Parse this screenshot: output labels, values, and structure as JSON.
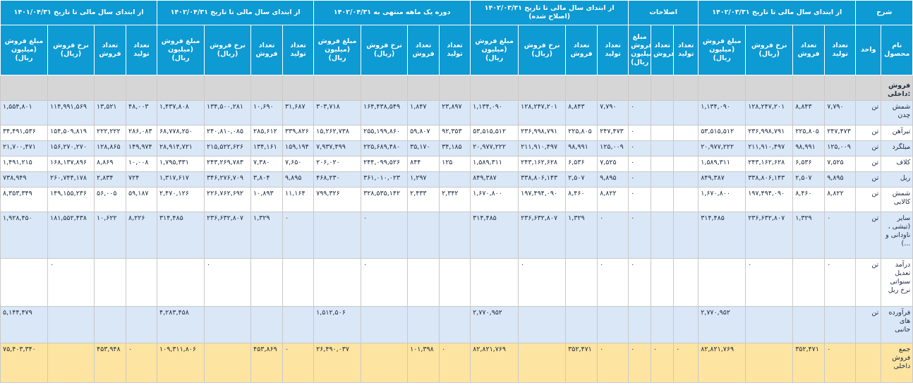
{
  "header_groups": [
    {
      "label": "شرح",
      "span": 2
    },
    {
      "label": "از ابتدای سال مالی تا تاریخ ۱۴۰۲/۰۳/۳۱",
      "span": 4
    },
    {
      "label": "اصلاحات",
      "span": 3
    },
    {
      "label": "از ابتدای سال مالی تا تاریخ ۱۴۰۲/۰۳/۳۱ (اصلاح شده)",
      "span": 4
    },
    {
      "label": "دوره یک ماهه منتهی به ۱۴۰۲/۰۴/۳۱",
      "span": 4
    },
    {
      "label": "از ابتدای سال مالی تا تاریخ ۱۴۰۲/۰۴/۳۱",
      "span": 4
    },
    {
      "label": "از ابتدای سال مالی تا تاریخ ۱۴۰۱/۰۴/۳۱",
      "span": 4
    }
  ],
  "sub_headers": [
    "نام محصول",
    "واحد",
    "تعداد تولید",
    "تعداد فروش",
    "نرخ فروش (ریال)",
    "مبلغ فروش (میلیون ریال)",
    "تعداد تولید",
    "تعداد فروش",
    "مبلغ فروش (میلیون ریال)",
    "تعداد تولید",
    "تعداد فروش",
    "نرخ فروش (ریال)",
    "مبلغ فروش (میلیون ریال)",
    "تعداد تولید",
    "تعداد فروش",
    "نرخ فروش (ریال)",
    "مبلغ فروش (میلیون ریال)",
    "تعداد تولید",
    "تعداد فروش",
    "نرخ فروش (ریال)",
    "مبلغ فروش (میلیون ریال)",
    "تعداد تولید",
    "تعداد فروش",
    "نرخ فروش (ریال)",
    "مبلغ فروش (میلیون ریال)"
  ],
  "section_title": "فروش داخلی:",
  "rows": [
    {
      "style": "blue",
      "height": 35,
      "cells": [
        "شمش چدن",
        "تن",
        "۷,۷۹۰",
        "۸,۸۴۳",
        "۱۲۸,۲۴۷,۲۰۱",
        "۱,۱۳۴,۰۹۰",
        "",
        "",
        "۰",
        "۷,۷۹۰",
        "۸,۸۴۳",
        "۱۲۸,۲۴۷,۲۰۱",
        "۱,۱۳۴,۰۹۰",
        "۲۳,۸۹۷",
        "۱,۸۴۷",
        "۱۶۴,۴۳۸,۵۴۹",
        "۳۰۳,۷۱۸",
        "۳۱,۶۸۷",
        "۱۰,۶۹۰",
        "۱۳۴,۵۰۰,۲۸۱",
        "۱,۴۳۷,۸۰۸",
        "۴۸,۰۰۳",
        "۱۳,۵۲۱",
        "۱۱۴,۹۹۱,۵۶۹",
        "۱,۵۵۴,۸۰۱"
      ]
    },
    {
      "style": "white",
      "height": 22,
      "cells": [
        "تیرآهن",
        "تن",
        "۲۴۷,۴۷۳",
        "۲۲۵,۸۰۵",
        "۲۳۶,۹۹۸,۷۹۱",
        "۵۳,۵۱۵,۵۱۲",
        "",
        "",
        "۰",
        "۲۴۷,۴۷۳",
        "۲۲۵,۸۰۵",
        "۲۳۶,۹۹۸,۷۹۱",
        "۵۳,۵۱۵,۵۱۲",
        "۹۲,۳۵۳",
        "۵۹,۸۰۷",
        "۲۵۵,۱۹۹,۸۶۰",
        "۱۵,۲۶۲,۷۳۸",
        "۳۳۹,۸۲۶",
        "۲۸۵,۶۱۲",
        "۲۴۰,۸۱۰,۰۸۵",
        "۶۸,۷۷۸,۲۵۰",
        "۲۸۶,۰۸۳",
        "۲۲۲,۲۲۲",
        "۱۵۴,۵۰۹,۸۱۹",
        "۳۴,۴۹۱,۵۳۶"
      ]
    },
    {
      "style": "blue",
      "height": 22,
      "cells": [
        "میلگرد",
        "تن",
        "۱۲۵,۰۰۹",
        "۹۸,۹۹۱",
        "۲۱۱,۹۱۰,۴۹۷",
        "۲۰,۹۷۷,۲۲۲",
        "",
        "",
        "۰",
        "۱۲۵,۰۰۹",
        "۹۸,۹۹۱",
        "۲۱۱,۹۱۰,۴۹۷",
        "۲۰,۹۷۷,۲۲۲",
        "۳۴,۱۸۵",
        "۳۵,۱۷۰",
        "۲۲۵,۶۸۹,۴۸۰",
        "۷,۹۳۷,۴۹۹",
        "۱۵۹,۱۹۴",
        "۱۳۴,۱۶۱",
        "۲۱۵,۵۲۲,۶۲۶",
        "۲۸,۹۱۴,۷۲۱",
        "۱۴۹,۹۷۴",
        "۱۲۸,۸۶۵",
        "۱۵۶,۲۷۰,۲۷۰",
        "۲۱,۷۰۰,۴۷۱"
      ]
    },
    {
      "style": "white",
      "height": 22,
      "cells": [
        "کلاف",
        "تن",
        "۷,۵۲۵",
        "۶,۵۳۶",
        "۲۴۳,۱۶۲,۶۲۸",
        "۱,۵۸۹,۳۱۱",
        "",
        "",
        "۰",
        "۷,۵۲۵",
        "۶,۵۳۶",
        "۲۴۳,۱۶۲,۶۲۸",
        "۱,۵۸۹,۳۱۱",
        "۱۲۵",
        "۸۴۴",
        "۲۴۴,۰۹۹,۵۲۶",
        "۲۰۶,۰۲۰",
        "۷,۶۵۰",
        "۷,۳۸۰",
        "۲۴۳,۲۶۹,۷۸۳",
        "۱,۷۹۵,۳۳۱",
        "۱۰,۰۰۸",
        "۸,۸۶۹",
        "۱۶۸,۱۳۷,۸۹۶",
        "۱,۴۹۱,۲۱۵"
      ]
    },
    {
      "style": "blue",
      "height": 22,
      "cells": [
        "ریل",
        "تن",
        "۹,۸۹۵",
        "۲,۵۰۷",
        "۳۳۸,۸۰۶,۱۴۳",
        "۸۴۹,۳۸۷",
        "",
        "",
        "۰",
        "۹,۸۹۵",
        "۲,۵۰۷",
        "۳۳۸,۸۰۶,۱۴۳",
        "۸۴۹,۳۸۷",
        "",
        "۱,۲۹۷",
        "۳۶۱,۰۱۰,۰۲۳",
        "۴۶۸,۲۳۰",
        "۹,۸۹۵",
        "۳,۸۰۴",
        "۳۴۶,۲۷۶,۷۰۹",
        "۱,۳۱۷,۶۱۷",
        "۷۲۴",
        "۲,۸۳۴",
        "۲۶۰,۷۴۴,۱۷۸",
        "۷۳۸,۹۴۹"
      ]
    },
    {
      "style": "white",
      "height": 35,
      "cells": [
        "شمش کالایی",
        "تن",
        "۸,۸۲۲",
        "۸,۴۶۰",
        "۱۹۷,۴۹۴,۰۹۰",
        "۱,۶۷۰,۸۰۰",
        "",
        "",
        "۰",
        "۸,۸۲۲",
        "۸,۴۶۰",
        "۱۹۷,۴۹۴,۰۹۰",
        "۱,۶۷۰,۸۰۰",
        "۲,۳۴۲",
        "۲,۴۳۳",
        "۳۲۸,۵۳۵,۱۴۲",
        "۷۹۹,۳۲۶",
        "۱۱,۱۶۴",
        "۱۰,۸۹۳",
        "۲۲۶,۷۶۲,۶۹۲",
        "۲,۴۷۰,۱۲۶",
        "۵۹,۱۸۷",
        "۵۶,۰۰۵",
        "۱۴۹,۱۵۵,۲۳۶",
        "۸,۳۵۳,۳۴۹"
      ]
    },
    {
      "style": "blue",
      "height": 66,
      "cells": [
        "سایر (تیشی ، ناودانی و ...)",
        "تن",
        "۰",
        "۱,۳۲۹",
        "۲۳۶,۶۳۲,۸۰۷",
        "۳۱۴,۴۸۵",
        "",
        "",
        "۰",
        "۰",
        "۱,۳۲۹",
        "۲۳۶,۶۳۲,۸۰۷",
        "۳۱۴,۴۸۵",
        "",
        "",
        "۰",
        "",
        "۰",
        "۱,۳۲۹",
        "۲۳۶,۶۳۲,۸۰۷",
        "۳۱۴,۴۸۵",
        "۸,۲۲۶",
        "۱۰,۶۲۲",
        "۱۸۱,۵۵۲,۴۳۸",
        "۱,۹۲۸,۴۵۰"
      ]
    },
    {
      "style": "white",
      "height": 68,
      "cells": [
        "درآمد تعدیل سنواتی نرخ ریل",
        "تن",
        "۰",
        "",
        "۰",
        "",
        "",
        "",
        "۰",
        "۰",
        "",
        "۰",
        "",
        "",
        "",
        "۰",
        "",
        "",
        "",
        "۰",
        "",
        "",
        "",
        "۰",
        ""
      ]
    },
    {
      "style": "blue",
      "height": 52,
      "cells": [
        "فرآورده های جانبی",
        "تن",
        "",
        "",
        "",
        "۲,۷۷۰,۹۵۲",
        "",
        "",
        "",
        "",
        "",
        "",
        "۲,۷۷۰,۹۵۲",
        "",
        "",
        "",
        "۱,۵۱۲,۵۰۶",
        "",
        "",
        "",
        "۴,۲۸۳,۴۵۸",
        "",
        "",
        "",
        "۵,۱۴۴,۴۷۹"
      ]
    },
    {
      "style": "tot",
      "height": 56,
      "cells": [
        "جمع فروش داخلی",
        "",
        "۰",
        "۳۵۲,۴۷۱",
        "",
        "۸۲,۸۲۱,۷۶۹",
        "۰",
        "۰",
        "۰",
        "۰",
        "۳۵۲,۴۷۱",
        "",
        "۸۲,۸۲۱,۷۶۹",
        "۰",
        "۱۰۱,۳۹۸",
        "",
        "۲۶,۴۹۰,۰۳۷",
        "۰",
        "۴۵۳,۸۶۹",
        "",
        "۱۰۹,۳۱۱,۸۰۶",
        "۰",
        "۴۵۳,۹۴۸",
        "",
        "۷۵,۴۰۳,۳۴۰"
      ]
    }
  ]
}
